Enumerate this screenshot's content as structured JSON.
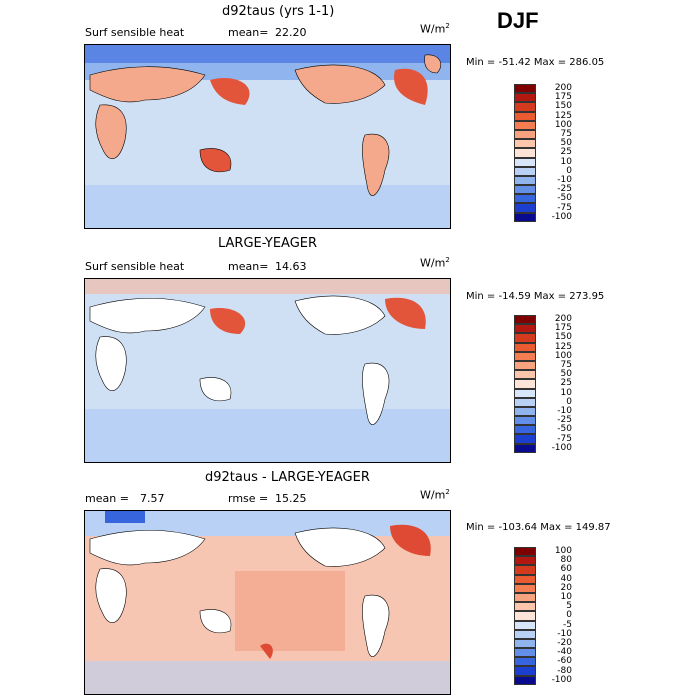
{
  "season": "DJF",
  "units": {
    "base": "W/m",
    "exp": "2"
  },
  "panels": [
    {
      "title": "d92taus (yrs 1-1)",
      "left_label": "Surf sensible heat",
      "stat1_label": "mean=",
      "stat1_value": "22.20",
      "stat2_label": "",
      "stat2_value": "",
      "minmax": "Min = -51.42 Max = 286.05",
      "colorbar": [
        "200",
        "175",
        "150",
        "125",
        "100",
        "75",
        "50",
        "25",
        "10",
        "0",
        "-10",
        "-25",
        "-50",
        "-75",
        "-100"
      ],
      "ocean_colors": {
        "main": "#cfe0f5",
        "warm": "#f6b49c",
        "hot": "#e2553a"
      },
      "land_fill": "#f4a98c"
    },
    {
      "title": "LARGE-YEAGER",
      "left_label": "Surf sensible heat",
      "stat1_label": "mean=",
      "stat1_value": "14.63",
      "stat2_label": "",
      "stat2_value": "",
      "minmax": "Min = -14.59 Max = 273.95",
      "colorbar": [
        "200",
        "175",
        "150",
        "125",
        "100",
        "75",
        "50",
        "25",
        "10",
        "0",
        "-10",
        "-25",
        "-50",
        "-75",
        "-100"
      ],
      "ocean_colors": {
        "main": "#cfe0f5",
        "warm": "#f6b49c",
        "hot": "#e2553a"
      },
      "land_fill": "#ffffff"
    },
    {
      "title": "d92taus - LARGE-YEAGER",
      "left_label": "mean =",
      "stat1_label": "",
      "stat1_value": "7.57",
      "stat2_label": "rmse =",
      "stat2_value": "15.25",
      "minmax": "Min = -103.64 Max = 149.87",
      "colorbar": [
        "100",
        "80",
        "60",
        "40",
        "20",
        "10",
        "5",
        "0",
        "-5",
        "-10",
        "-20",
        "-40",
        "-60",
        "-80",
        "-100"
      ],
      "ocean_colors": {
        "main": "#f7c6b2",
        "warm": "#f3a48a",
        "hot": "#de4a33"
      },
      "land_fill": "#ffffff"
    }
  ],
  "colorbar_colors": [
    "#7f0000",
    "#b2180f",
    "#d43b1e",
    "#ea5b32",
    "#f47d52",
    "#f8a37f",
    "#fbc6ab",
    "#fde4d6",
    "#d7e6f8",
    "#b8d1f4",
    "#8fb4ee",
    "#638fe8",
    "#3765de",
    "#1c3fcf",
    "#0a0a8f"
  ]
}
